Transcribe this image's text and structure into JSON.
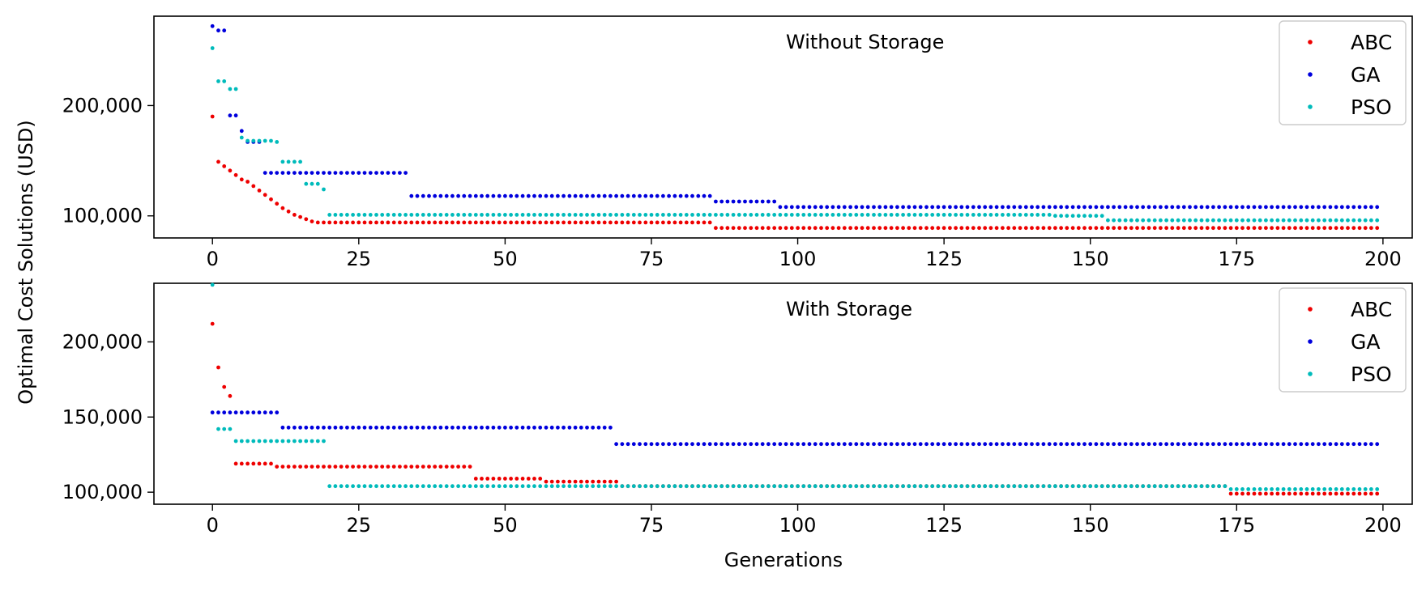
{
  "figure": {
    "ylabel": "Optimal Cost Solutions (USD)",
    "xlabel": "Generations"
  },
  "colors": {
    "ABC": "#ee0000",
    "GA": "#0000dd",
    "PSO": "#00bbbb"
  },
  "chart_data": [
    {
      "type": "scatter",
      "title": "Without Storage",
      "xlabel": "",
      "ylabel": "Optimal Cost Solutions (USD)",
      "xlim": [
        -10,
        205
      ],
      "ylim": [
        80000,
        281000
      ],
      "xticks": [
        0,
        25,
        50,
        75,
        100,
        125,
        150,
        175,
        200
      ],
      "xtick_labels": [
        "0",
        "25",
        "50",
        "75",
        "100",
        "125",
        "150",
        "175",
        "200"
      ],
      "yticks": [
        100000,
        200000
      ],
      "ytick_labels": [
        "100,000",
        "200,000"
      ],
      "legend": {
        "position": "top-right",
        "entries": [
          "ABC",
          "GA",
          "PSO"
        ]
      },
      "series": [
        {
          "name": "ABC",
          "x_range": [
            0,
            199
          ],
          "segments": [
            [
              0,
              0,
              190000
            ],
            [
              1,
              1,
              149000
            ],
            [
              2,
              2,
              145000
            ],
            [
              3,
              3,
              141000
            ],
            [
              4,
              4,
              137000
            ],
            [
              5,
              5,
              133000
            ],
            [
              6,
              6,
              131000
            ],
            [
              7,
              7,
              127000
            ],
            [
              8,
              8,
              123000
            ],
            [
              9,
              9,
              119000
            ],
            [
              10,
              10,
              115000
            ],
            [
              11,
              11,
              111000
            ],
            [
              12,
              12,
              107000
            ],
            [
              13,
              13,
              104000
            ],
            [
              14,
              14,
              101000
            ],
            [
              15,
              15,
              99000
            ],
            [
              16,
              16,
              97000
            ],
            [
              17,
              17,
              95000
            ],
            [
              18,
              85,
              94000
            ],
            [
              86,
              199,
              89000
            ]
          ]
        },
        {
          "name": "GA",
          "x_range": [
            0,
            199
          ],
          "segments": [
            [
              0,
              0,
              272000
            ],
            [
              1,
              2,
              268000
            ],
            [
              3,
              4,
              191000
            ],
            [
              5,
              5,
              177000
            ],
            [
              6,
              8,
              167000
            ],
            [
              9,
              33,
              139000
            ],
            [
              34,
              85,
              118000
            ],
            [
              86,
              96,
              113000
            ],
            [
              97,
              199,
              108000
            ]
          ]
        },
        {
          "name": "PSO",
          "x_range": [
            0,
            199
          ],
          "segments": [
            [
              0,
              0,
              252000
            ],
            [
              1,
              2,
              222000
            ],
            [
              3,
              4,
              215000
            ],
            [
              5,
              5,
              171000
            ],
            [
              6,
              10,
              168000
            ],
            [
              11,
              11,
              167000
            ],
            [
              12,
              15,
              149000
            ],
            [
              16,
              18,
              129000
            ],
            [
              19,
              19,
              124000
            ],
            [
              20,
              143,
              101000
            ],
            [
              144,
              152,
              100000
            ],
            [
              153,
              199,
              96000
            ]
          ]
        }
      ]
    },
    {
      "type": "scatter",
      "title": "With Storage",
      "xlabel": "Generations",
      "ylabel": "Optimal Cost Solutions (USD)",
      "xlim": [
        -10,
        205
      ],
      "ylim": [
        92000,
        239000
      ],
      "xticks": [
        0,
        25,
        50,
        75,
        100,
        125,
        150,
        175,
        200
      ],
      "xtick_labels": [
        "0",
        "25",
        "50",
        "75",
        "100",
        "125",
        "150",
        "175",
        "200"
      ],
      "yticks": [
        100000,
        150000,
        200000
      ],
      "ytick_labels": [
        "100,000",
        "150,000",
        "200,000"
      ],
      "legend": {
        "position": "top-right",
        "entries": [
          "ABC",
          "GA",
          "PSO"
        ]
      },
      "series": [
        {
          "name": "ABC",
          "x_range": [
            0,
            199
          ],
          "segments": [
            [
              0,
              0,
              212000
            ],
            [
              1,
              1,
              183000
            ],
            [
              2,
              2,
              170000
            ],
            [
              3,
              3,
              164000
            ],
            [
              4,
              10,
              119000
            ],
            [
              11,
              44,
              117000
            ],
            [
              45,
              56,
              109000
            ],
            [
              57,
              69,
              107000
            ],
            [
              70,
              173,
              104000
            ],
            [
              174,
              199,
              99000
            ]
          ]
        },
        {
          "name": "GA",
          "x_range": [
            0,
            199
          ],
          "segments": [
            [
              0,
              11,
              153000
            ],
            [
              12,
              68,
              143000
            ],
            [
              69,
              199,
              132000
            ]
          ]
        },
        {
          "name": "PSO",
          "x_range": [
            0,
            199
          ],
          "segments": [
            [
              0,
              0,
              238000
            ],
            [
              1,
              3,
              142000
            ],
            [
              4,
              19,
              134000
            ],
            [
              20,
              173,
              104000
            ],
            [
              174,
              199,
              102000
            ]
          ]
        }
      ]
    }
  ]
}
